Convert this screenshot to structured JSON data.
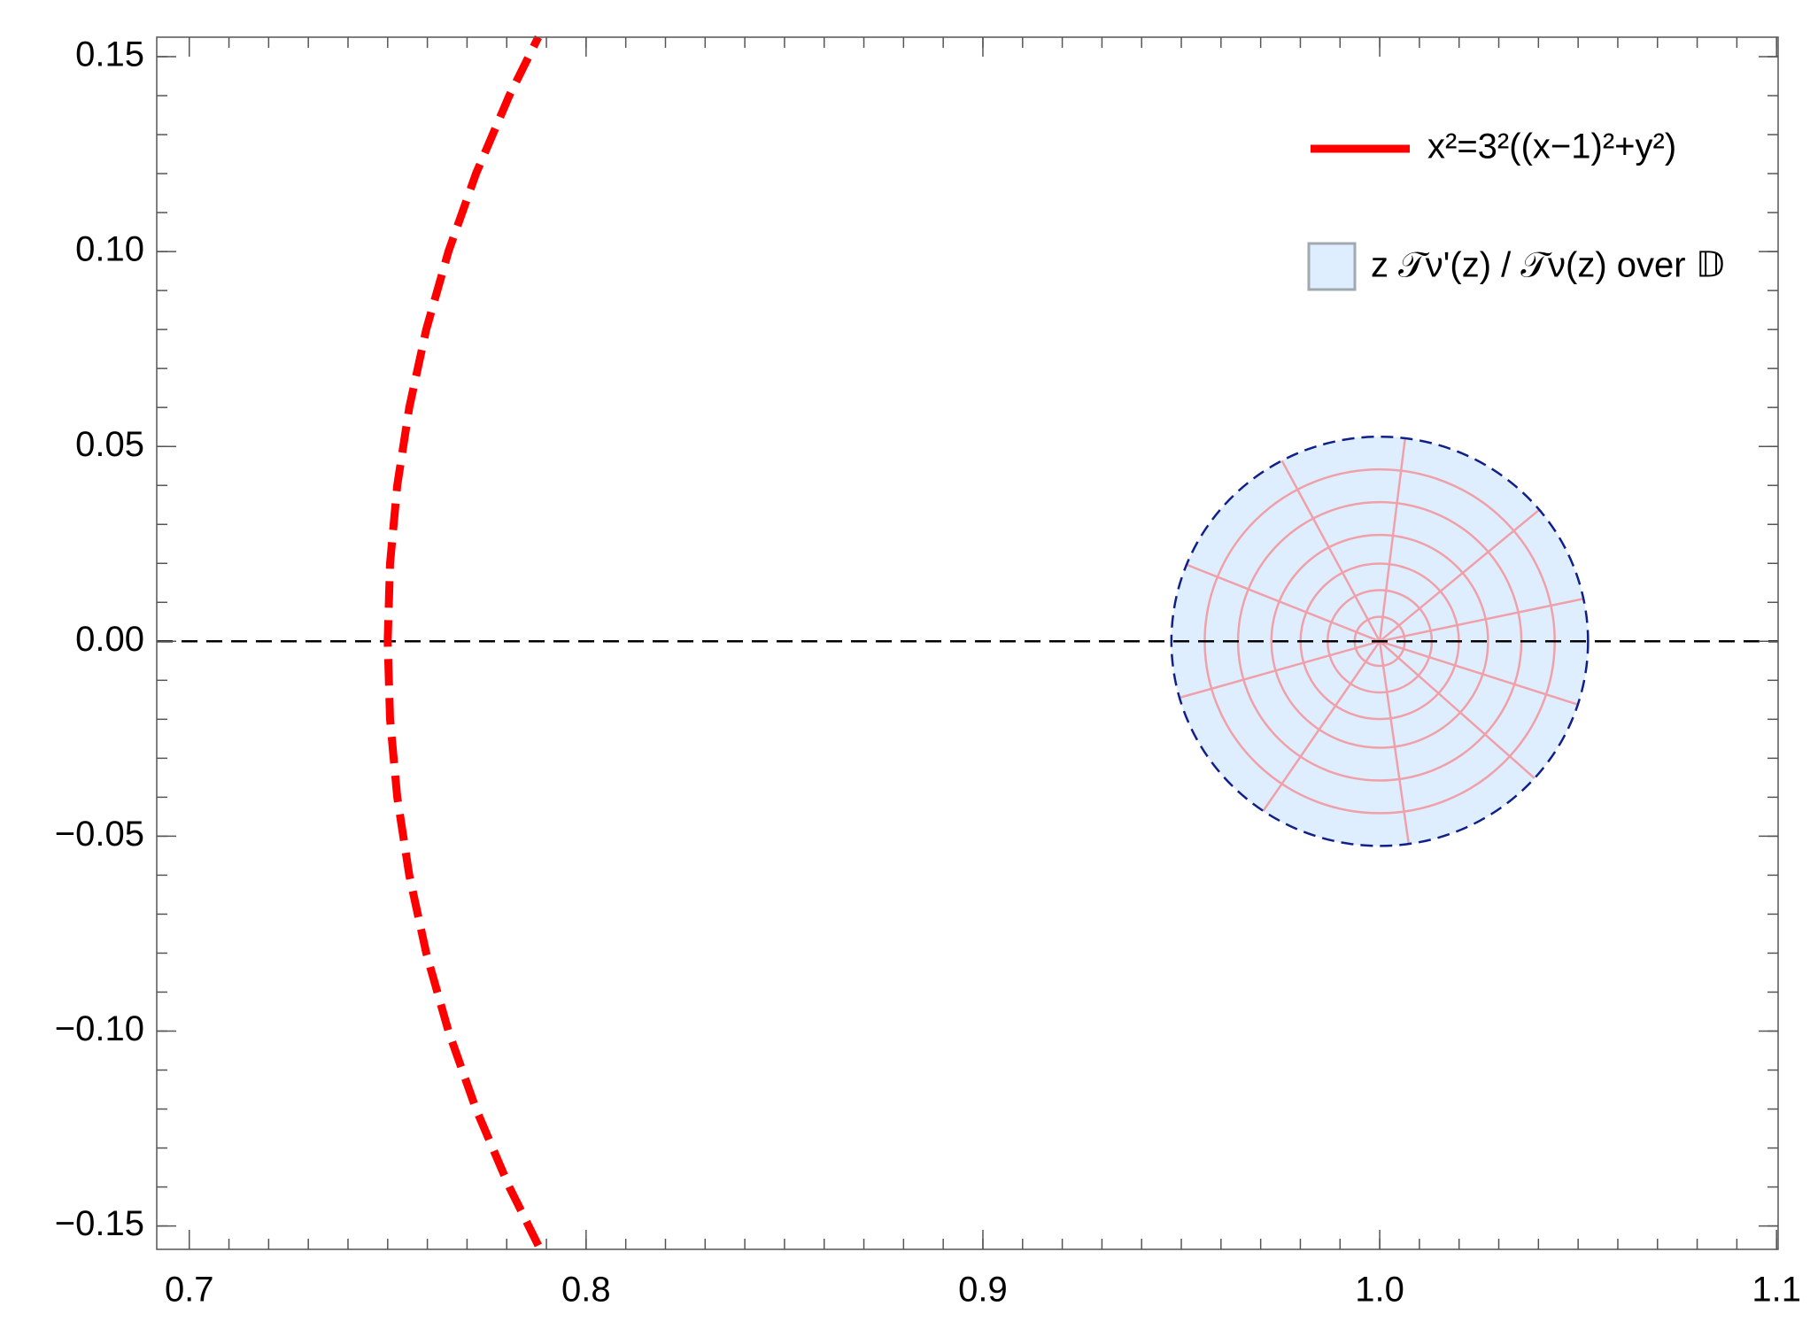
{
  "chart_data": {
    "type": "region",
    "xlim": [
      0.6918,
      1.1004
    ],
    "ylim": [
      -0.156,
      0.155
    ],
    "xticks": [
      0.7,
      0.8,
      0.9,
      {
        "value": 1,
        "label": "1.0"
      },
      1.1
    ],
    "yticks": [
      {
        "value": -0.15,
        "label": "−0.15"
      },
      {
        "value": -0.1,
        "label": "−0.10"
      },
      {
        "value": -0.05,
        "label": "−0.05"
      },
      {
        "value": 0,
        "label": "0.00"
      },
      0.05,
      {
        "value": 0.1,
        "label": "0.10"
      },
      0.15
    ],
    "xminorticks": [
      0.7,
      0.71,
      0.72,
      0.73,
      0.74,
      0.75,
      0.76,
      0.77,
      0.78,
      0.79,
      0.8,
      0.81,
      0.82,
      0.83,
      0.84,
      0.85,
      0.86,
      0.87,
      0.88,
      0.89,
      0.9,
      0.91,
      0.92,
      0.93,
      0.94,
      0.95,
      0.96,
      0.97,
      0.98,
      0.99,
      1.0,
      1.01,
      1.02,
      1.03,
      1.04,
      1.05,
      1.06,
      1.07,
      1.08,
      1.09,
      1.1
    ],
    "yminorticks": [
      -0.15,
      -0.14,
      -0.13,
      -0.12,
      -0.11,
      -0.1,
      -0.09,
      -0.08,
      -0.07,
      -0.06,
      -0.05,
      -0.04,
      -0.03,
      -0.02,
      -0.01,
      0,
      0.01,
      0.02,
      0.03,
      0.04,
      0.05,
      0.06,
      0.07,
      0.08,
      0.09,
      0.1,
      0.11,
      0.12,
      0.13,
      0.14,
      0.15
    ],
    "hline": 0,
    "series": [
      {
        "name": "x²=3²((x−1)²+y²)",
        "color": "#ff0000",
        "x": [
          0.78796,
          0.78065,
          0.77226,
          0.76531,
          0.75972,
          0.75544,
          0.75241,
          0.7506,
          0.75,
          0.7506,
          0.75241,
          0.75544,
          0.75972,
          0.76531,
          0.77226,
          0.78065,
          0.78796
        ],
        "y": [
          -0.155,
          -0.14,
          -0.12,
          -0.1,
          -0.08,
          -0.06,
          -0.04,
          -0.02,
          0,
          0.02,
          0.04,
          0.06,
          0.08,
          0.1,
          0.12,
          0.14,
          0.155
        ]
      }
    ],
    "region": {
      "name": "z 𝒯ν'(z) / 𝒯ν(z) over 𝔻",
      "color": "#deeeff",
      "center": [
        1.0,
        0
      ],
      "radius": 0.0525
    }
  }
}
